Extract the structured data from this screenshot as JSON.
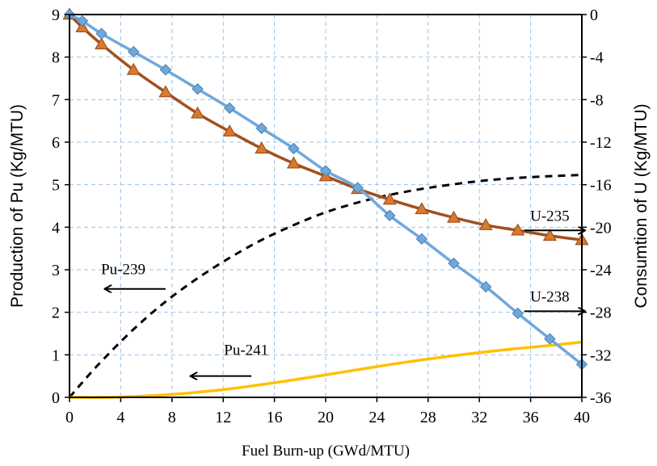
{
  "chart_data": {
    "type": "line",
    "xlabel": "Fuel Burn-up (GWd/MTU)",
    "ylabel_left": "Production of Pu (Kg/MTU)",
    "ylabel_right": "Consumtion of U (Kg/MTU)",
    "xlim": [
      0,
      40
    ],
    "ylim_left": [
      0,
      9
    ],
    "ylim_right": [
      -36,
      0
    ],
    "x_ticks": [
      0,
      4,
      8,
      12,
      16,
      20,
      24,
      28,
      32,
      36,
      40
    ],
    "y_left_ticks": [
      0,
      1,
      2,
      3,
      4,
      5,
      6,
      7,
      8,
      9
    ],
    "y_right_ticks": [
      0,
      -4,
      -8,
      -12,
      -16,
      -20,
      -24,
      -28,
      -32,
      -36
    ],
    "grid": true,
    "legend": "none",
    "series": [
      {
        "name": "Pu-239",
        "axis": "left",
        "style": "dashed",
        "color": "#000000",
        "marker": "none",
        "x": [
          0,
          1,
          2.5,
          5,
          7.5,
          10,
          12.5,
          15,
          17.5,
          20,
          22.5,
          25,
          27.5,
          30,
          32.5,
          35,
          37.5,
          40
        ],
        "values": [
          0,
          0.35,
          0.85,
          1.6,
          2.25,
          2.8,
          3.28,
          3.7,
          4.05,
          4.35,
          4.58,
          4.76,
          4.9,
          5.01,
          5.1,
          5.16,
          5.2,
          5.23
        ]
      },
      {
        "name": "Pu-241",
        "axis": "left",
        "style": "solid",
        "color": "#FFC000",
        "marker": "none",
        "x": [
          0,
          1,
          2.5,
          5,
          7.5,
          10,
          12.5,
          15,
          17.5,
          20,
          22.5,
          25,
          27.5,
          30,
          32.5,
          35,
          37.5,
          40
        ],
        "values": [
          0,
          0,
          0,
          0.02,
          0.06,
          0.12,
          0.2,
          0.3,
          0.41,
          0.53,
          0.65,
          0.77,
          0.88,
          0.98,
          1.07,
          1.15,
          1.22,
          1.3
        ]
      },
      {
        "name": "U-235",
        "axis": "right",
        "style": "solid",
        "color": "#A0501E",
        "marker": "triangle",
        "marker_color": "#D97A2B",
        "x": [
          0,
          1,
          2.5,
          5,
          7.5,
          10,
          12.5,
          15,
          17.5,
          20,
          22.5,
          25,
          27.5,
          30,
          32.5,
          35,
          37.5,
          40
        ],
        "values": [
          0,
          -1.2,
          -2.8,
          -5.2,
          -7.3,
          -9.3,
          -11,
          -12.6,
          -14,
          -15.2,
          -16.4,
          -17.4,
          -18.3,
          -19.1,
          -19.8,
          -20.3,
          -20.8,
          -21.2
        ]
      },
      {
        "name": "U-238",
        "axis": "right",
        "style": "solid",
        "color": "#6FA8DC",
        "marker": "diamond",
        "marker_color": "#6FA8DC",
        "x": [
          0,
          1,
          2.5,
          5,
          7.5,
          10,
          12.5,
          15,
          17.5,
          20,
          22.5,
          25,
          27.5,
          30,
          32.5,
          35,
          37.5,
          40
        ],
        "values": [
          0,
          -0.6,
          -1.8,
          -3.5,
          -5.2,
          -7,
          -8.8,
          -10.7,
          -12.6,
          -14.7,
          -16.3,
          -18.9,
          -21.1,
          -23.4,
          -25.6,
          -28.1,
          -30.5,
          -32.9
        ]
      }
    ],
    "annotations": [
      {
        "text": "Pu-239",
        "label_x": 4.2,
        "label_y": 2.9,
        "arrow_from": [
          7.5,
          2.55
        ],
        "arrow_to": [
          2.8,
          2.55
        ]
      },
      {
        "text": "Pu-241",
        "label_x": 13.8,
        "label_y": 1.0,
        "arrow_from": [
          14.2,
          0.5
        ],
        "arrow_to": [
          9.5,
          0.5
        ]
      },
      {
        "text": "U-235",
        "label_x": 37.5,
        "label_y": -19.4,
        "arrow_from": [
          35.5,
          -20.3
        ],
        "arrow_to": [
          40.2,
          -20.3
        ]
      },
      {
        "text": "U-238",
        "label_x": 37.5,
        "label_y": -27.0,
        "arrow_from": [
          35.5,
          -27.9
        ],
        "arrow_to": [
          40.2,
          -27.9
        ]
      }
    ]
  }
}
